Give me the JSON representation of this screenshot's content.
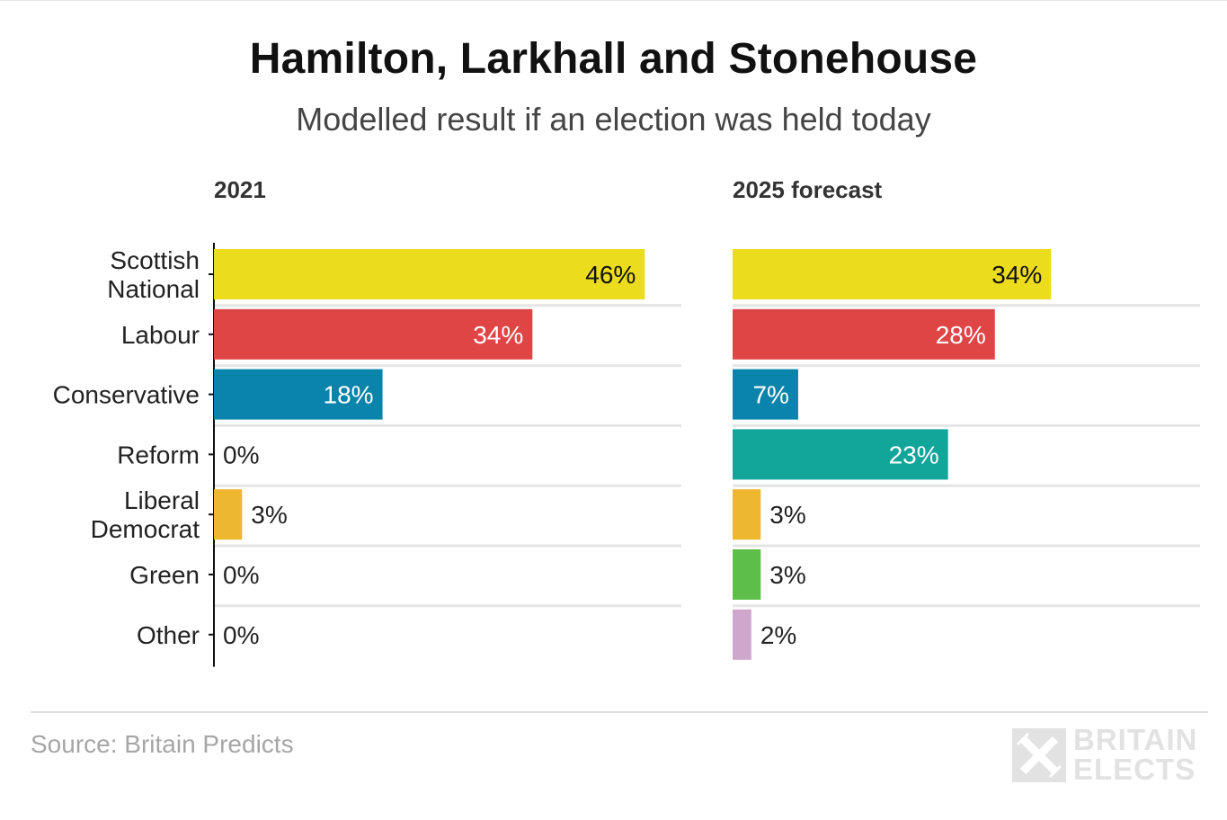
{
  "header": {
    "title": "Hamilton, Larkhall and Stonehouse",
    "subtitle": "Modelled result if an election was held today"
  },
  "colors": {
    "Scottish National": "#ecdc1e",
    "Labour": "#e04545",
    "Conservative": "#0a84aa",
    "Reform": "#12a599",
    "Liberal Democrat": "#edb830",
    "Green": "#5dbf4a",
    "Other": "#cfa7cc"
  },
  "chart_data": {
    "type": "bar",
    "orientation": "horizontal",
    "categories": [
      [
        "Scottish",
        "National"
      ],
      [
        "Labour"
      ],
      [
        "Conservative"
      ],
      [
        "Reform"
      ],
      [
        "Liberal",
        "Democrat"
      ],
      [
        "Green"
      ],
      [
        "Other"
      ]
    ],
    "party_keys": [
      "Scottish National",
      "Labour",
      "Conservative",
      "Reform",
      "Liberal Democrat",
      "Green",
      "Other"
    ],
    "xlim": [
      0,
      50
    ],
    "value_suffix": "%",
    "panels": [
      {
        "name": "2021",
        "values": [
          46,
          34,
          18,
          0,
          3,
          0,
          0
        ]
      },
      {
        "name": "2025 forecast",
        "values": [
          34,
          28,
          7,
          23,
          3,
          3,
          2
        ]
      }
    ]
  },
  "footer": {
    "source": "Source: Britain Predicts",
    "logo_line1": "BRITAIN",
    "logo_line2": "ELECTS"
  }
}
